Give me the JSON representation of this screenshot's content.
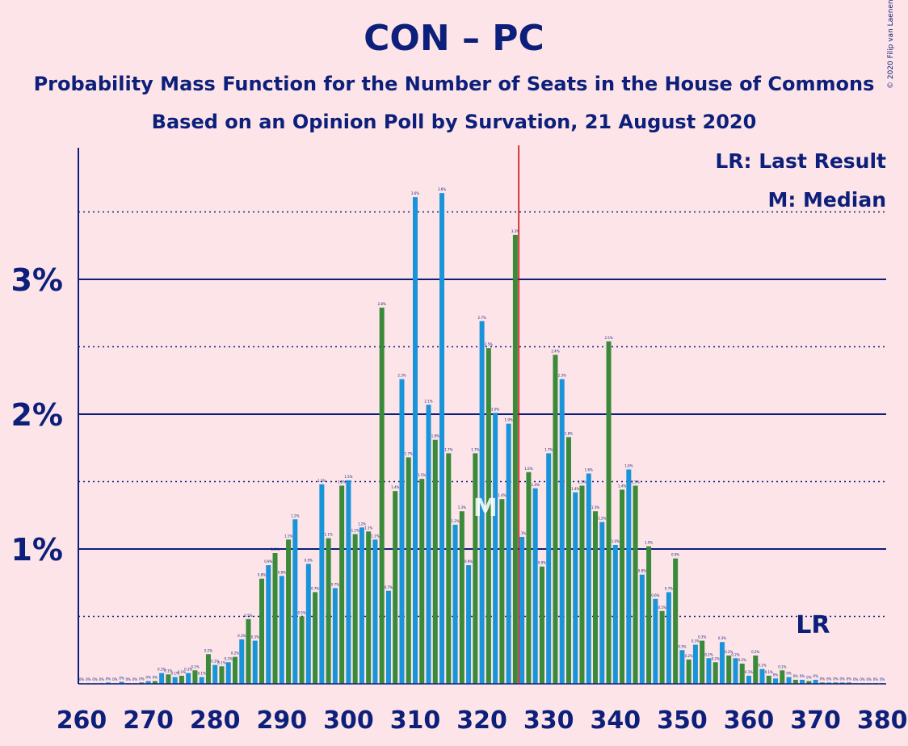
{
  "title": "CON – PC",
  "subtitle": "Probability Mass Function for the Number of Seats in the House of Commons",
  "subtitle2": "Based on an Opinion Poll by Survation, 21 August 2020",
  "copyright": "© 2020 Filip van Laenen",
  "legend": {
    "lr": "LR: Last Result",
    "m": "M: Median"
  },
  "colors": {
    "background": "#FDE4E8",
    "text": "#0C1F7A",
    "blue": "#1A94D8",
    "green": "#3A8A3A",
    "majority": "#CC0000"
  },
  "chart_data": {
    "type": "bar",
    "x_start": 260,
    "x_end": 380,
    "xticks": [
      "260",
      "270",
      "280",
      "290",
      "300",
      "310",
      "320",
      "330",
      "340",
      "350",
      "360",
      "370",
      "380"
    ],
    "yticks": [
      "1%",
      "2%",
      "3%"
    ],
    "ylim": [
      0,
      3.98
    ],
    "majority_line": 326,
    "median": 321,
    "median_label": "M",
    "last_result": 369,
    "last_result_label": "LR",
    "values": [
      0.005,
      0.005,
      0.005,
      0.005,
      0.01,
      0.005,
      0.015,
      0.005,
      0.005,
      0.01,
      0.02,
      0.02,
      0.08,
      0.07,
      0.05,
      0.06,
      0.08,
      0.1,
      0.05,
      0.22,
      0.14,
      0.13,
      0.16,
      0.2,
      0.33,
      0.48,
      0.32,
      0.78,
      0.88,
      0.97,
      0.8,
      1.07,
      1.22,
      0.5,
      0.89,
      0.68,
      1.48,
      1.08,
      0.71,
      1.47,
      1.51,
      1.11,
      1.16,
      1.13,
      1.07,
      2.79,
      0.69,
      1.43,
      2.26,
      1.68,
      3.61,
      1.52,
      2.07,
      1.81,
      3.64,
      1.71,
      1.18,
      1.28,
      0.88,
      1.71,
      2.69,
      2.49,
      2.01,
      1.37,
      1.93,
      3.33,
      1.09,
      1.57,
      1.45,
      0.87,
      1.71,
      2.44,
      2.26,
      1.83,
      1.42,
      1.47,
      1.56,
      1.28,
      1.2,
      2.54,
      1.03,
      1.44,
      1.59,
      1.47,
      0.81,
      1.02,
      0.63,
      0.54,
      0.68,
      0.93,
      0.25,
      0.18,
      0.29,
      0.32,
      0.19,
      0.16,
      0.31,
      0.21,
      0.19,
      0.15,
      0.06,
      0.21,
      0.11,
      0.06,
      0.04,
      0.1,
      0.05,
      0.03,
      0.03,
      0.02,
      0.03,
      0.01,
      0.01,
      0.01,
      0.01,
      0.01,
      0.005,
      0.005,
      0.005,
      0.005,
      0.005
    ],
    "value_labels": [
      "0%",
      "0%",
      "0%",
      "0%",
      "0%",
      "0%",
      "0%",
      "0%",
      "0%",
      "0%",
      "0%",
      "0%",
      "0.1%",
      "0.1%",
      "0.1%",
      "0.1%",
      "0.1%",
      "0.1%",
      "0.1%",
      "0.2%",
      "0.1%",
      "0.1%",
      "0.2%",
      "0.2%",
      "0.3%",
      "0.5%",
      "0.3%",
      "0.8%",
      "0.9%",
      "1.0%",
      "0.8%",
      "1.1%",
      "1.2%",
      "0.5%",
      "0.9%",
      "0.7%",
      "1.5%",
      "1.1%",
      "0.7%",
      "1.5%",
      "1.5%",
      "1.1%",
      "1.2%",
      "1.1%",
      "1.1%",
      "2.8%",
      "0.7%",
      "1.4%",
      "2.3%",
      "1.7%",
      "3.6%",
      "1.5%",
      "2.1%",
      "1.8%",
      "3.6%",
      "1.7%",
      "1.2%",
      "1.3%",
      "0.9%",
      "1.7%",
      "2.7%",
      "2.5%",
      "2.0%",
      "1.4%",
      "1.9%",
      "3.3%",
      "1.1%",
      "1.6%",
      "1.4%",
      "0.9%",
      "1.7%",
      "2.4%",
      "2.3%",
      "1.8%",
      "1.4%",
      "1.5%",
      "1.6%",
      "1.3%",
      "1.2%",
      "2.5%",
      "1.0%",
      "1.4%",
      "1.6%",
      "1.5%",
      "0.8%",
      "1.0%",
      "0.6%",
      "0.5%",
      "0.7%",
      "0.9%",
      "0.3%",
      "0.2%",
      "0.3%",
      "0.3%",
      "0.2%",
      "0.2%",
      "0.3%",
      "0.2%",
      "0.2%",
      "0.2%",
      "0.1%",
      "0.2%",
      "0.1%",
      "0.1%",
      "0%",
      "0.1%",
      "0%",
      "0%",
      "0%",
      "0%",
      "0%",
      "0%",
      "0%",
      "0%",
      "0%",
      "0%",
      "0%",
      "0%",
      "0%",
      "0%",
      "0%"
    ]
  }
}
